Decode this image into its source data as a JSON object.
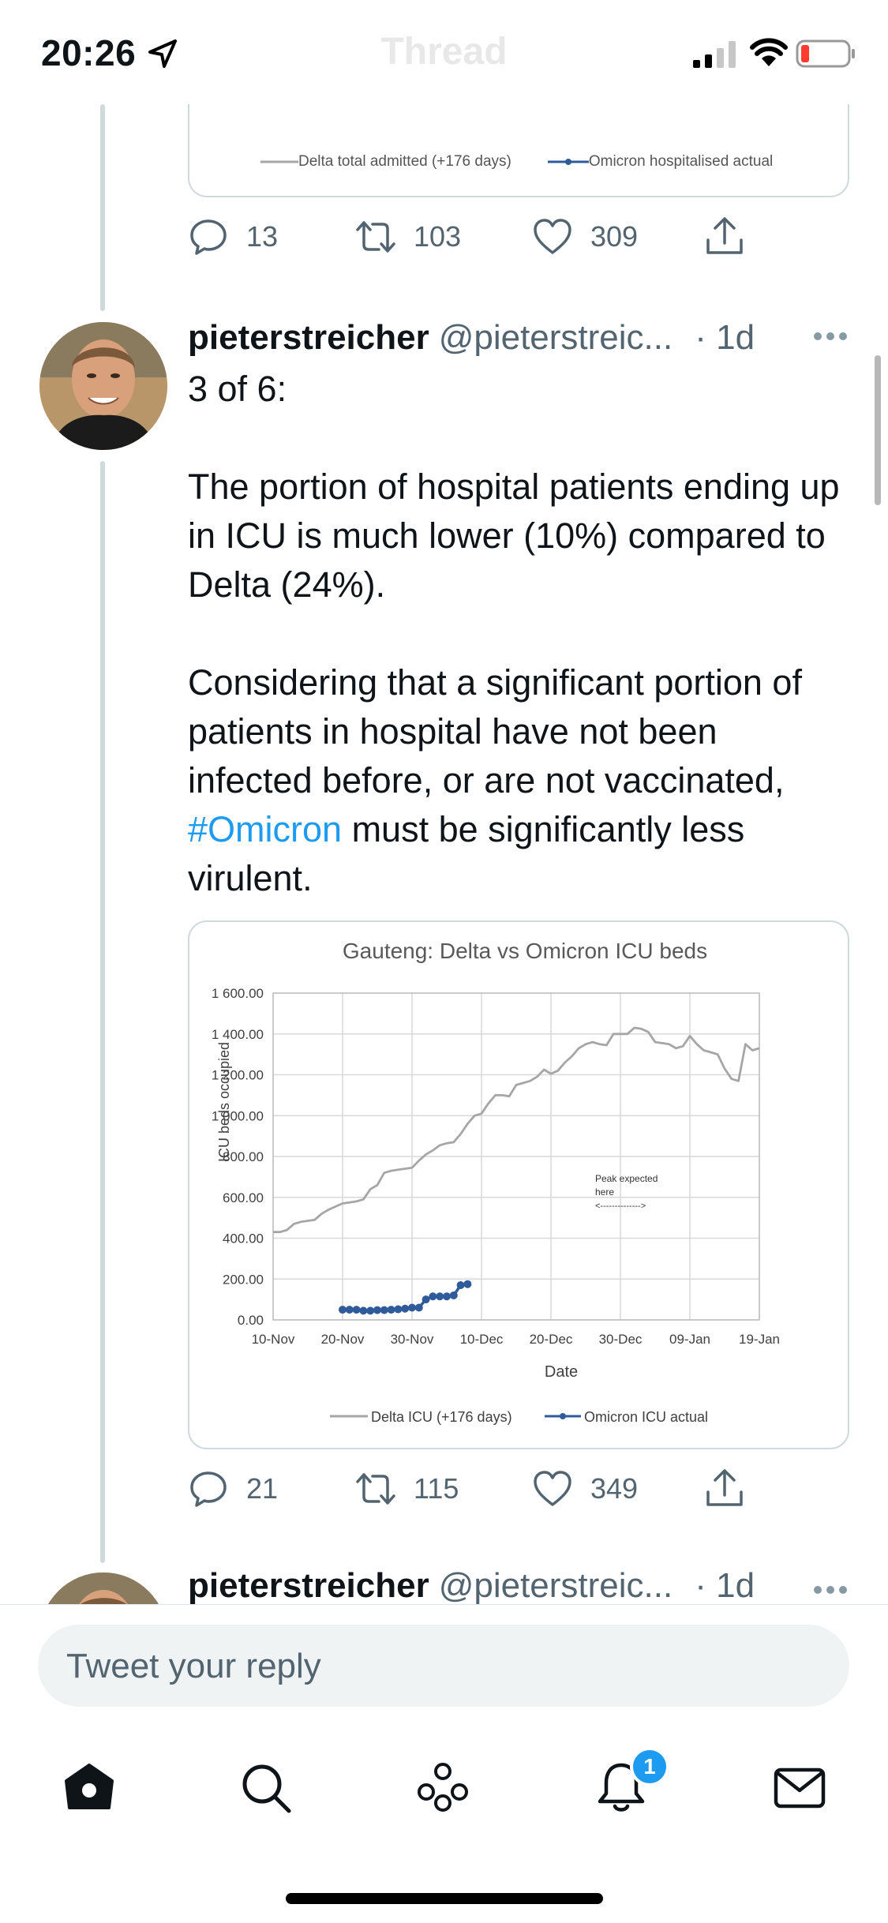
{
  "status_bar": {
    "time": "20:26",
    "ghost_title": "Thread"
  },
  "prev_tweet": {
    "legend": [
      "Delta total admitted (+176 days)",
      "Omicron hospitalised actual"
    ],
    "actions": {
      "replies": "13",
      "retweets": "103",
      "likes": "309"
    }
  },
  "tweet": {
    "name": "pieterstreicher",
    "handle": "@pieterstreic...",
    "time": "· 1d",
    "text_before": "3 of 6:\n\nThe portion of hospital patients ending up in ICU is much lower (10%) compared to Delta (24%).\n\nConsidering that a significant portion of patients in hospital have not been infected before, or are not vaccinated, ",
    "hashtag": "#Omicron",
    "text_after": " must be significantly less virulent.",
    "actions": {
      "replies": "21",
      "retweets": "115",
      "likes": "349"
    }
  },
  "next_tweet": {
    "name": "pieterstreicher",
    "handle": "@pieterstreic...",
    "time": "· 1d"
  },
  "reply": {
    "placeholder": "Tweet your reply"
  },
  "tabs": {
    "notification_count": "1"
  },
  "colors": {
    "accent": "#1d9bf0",
    "delta_line": "#a6a6a6",
    "omicron_line": "#2f5b9b"
  },
  "chart_data": {
    "type": "line",
    "title": "Gauteng: Delta vs Omicron ICU beds",
    "xlabel": "Date",
    "ylabel": "ICU beds occupied",
    "ylim": [
      0,
      1600
    ],
    "yticks": [
      "1 600.00",
      "1 400.00",
      "1 200.00",
      "1 000.00",
      "800.00",
      "600.00",
      "400.00",
      "200.00",
      "0.00"
    ],
    "xticks": [
      "10-Nov",
      "20-Nov",
      "30-Nov",
      "10-Dec",
      "20-Dec",
      "30-Dec",
      "09-Jan",
      "19-Jan"
    ],
    "grid": true,
    "legend_position": "bottom",
    "annotation": {
      "lines": [
        "Peak expected",
        "here"
      ],
      "arrow": "<-------------->"
    },
    "series": [
      {
        "name": "Delta ICU (+176 days)",
        "color": "#a6a6a6",
        "marker": false,
        "x": [
          0,
          1,
          2,
          3,
          4,
          5,
          6,
          7,
          8,
          9,
          10,
          11,
          12,
          13,
          14,
          15,
          16,
          17,
          18,
          19,
          20,
          21,
          22,
          23,
          24,
          25,
          26,
          27,
          28,
          29,
          30,
          31,
          32,
          33,
          34,
          35,
          36,
          37,
          38,
          39,
          40,
          41,
          42,
          43,
          44,
          45,
          46,
          47,
          48,
          49,
          50,
          51,
          52,
          53,
          54,
          55,
          56,
          57,
          58,
          59,
          60,
          61,
          62,
          63,
          64,
          65,
          66,
          67,
          68,
          69,
          70
        ],
        "y": [
          430,
          430,
          440,
          470,
          480,
          485,
          490,
          520,
          540,
          555,
          570,
          575,
          580,
          590,
          640,
          660,
          720,
          730,
          735,
          740,
          745,
          780,
          810,
          830,
          855,
          865,
          870,
          910,
          960,
          1000,
          1010,
          1060,
          1100,
          1100,
          1095,
          1150,
          1160,
          1170,
          1190,
          1225,
          1205,
          1220,
          1260,
          1290,
          1330,
          1350,
          1360,
          1350,
          1345,
          1400,
          1400,
          1400,
          1430,
          1425,
          1410,
          1360,
          1355,
          1350,
          1330,
          1340,
          1390,
          1350,
          1320,
          1310,
          1300,
          1230,
          1180,
          1170,
          1350,
          1320,
          1330
        ]
      },
      {
        "name": "Omicron ICU actual",
        "color": "#2f5b9b",
        "marker": true,
        "x": [
          10,
          11,
          12,
          13,
          14,
          15,
          16,
          17,
          18,
          19,
          20,
          21,
          22,
          23,
          24,
          25,
          26,
          27,
          28
        ],
        "y": [
          50,
          50,
          50,
          45,
          45,
          48,
          48,
          50,
          52,
          55,
          60,
          60,
          100,
          115,
          115,
          115,
          120,
          170,
          175
        ]
      }
    ]
  }
}
